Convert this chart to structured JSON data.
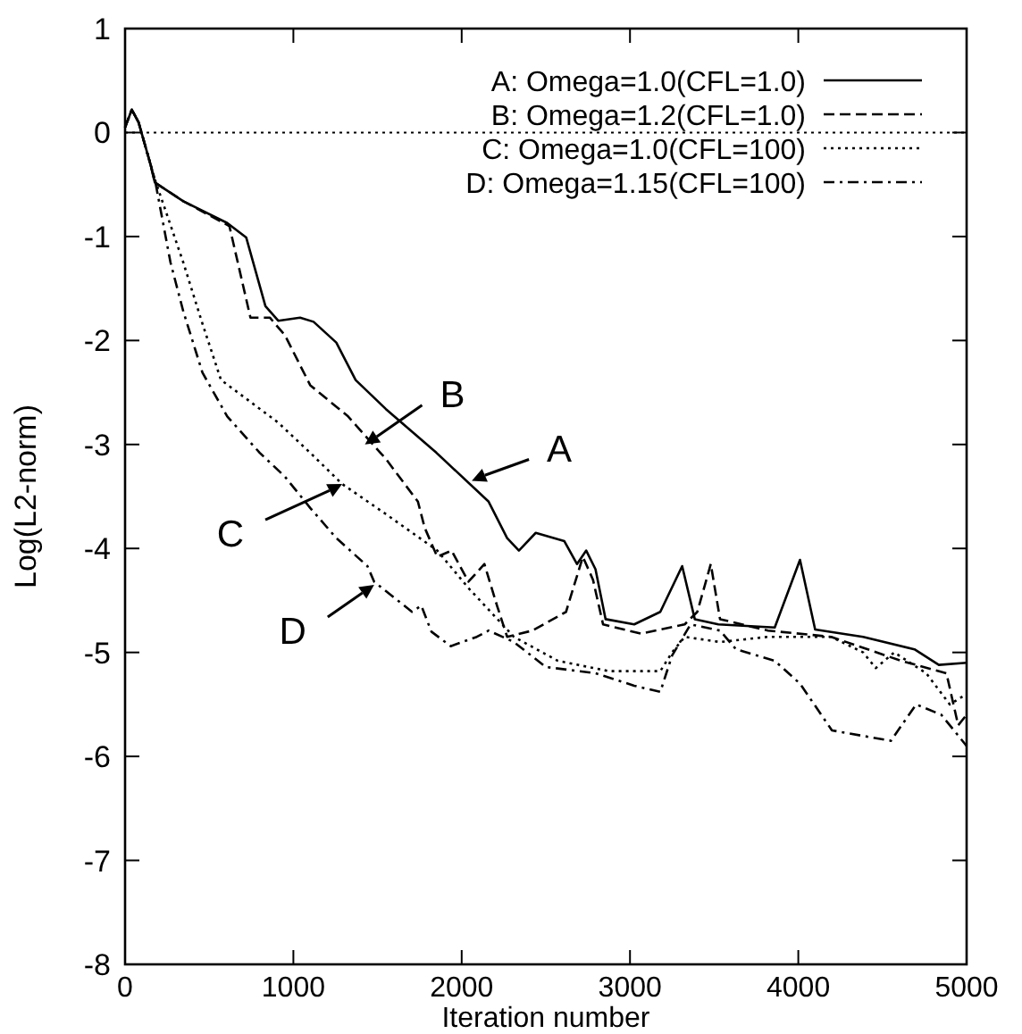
{
  "chart_data": {
    "type": "line",
    "xlabel": "Iteration number",
    "ylabel": "Log(L2-norm)",
    "xlim": [
      0,
      5000
    ],
    "ylim": [
      -8,
      1
    ],
    "xticks": [
      0,
      1000,
      2000,
      3000,
      4000,
      5000
    ],
    "yticks": [
      -8,
      -7,
      -6,
      -5,
      -4,
      -3,
      -2,
      -1,
      0,
      1
    ],
    "grid": false,
    "legend": "top right",
    "marker": "none",
    "ref_lines": [
      {
        "axis": "y",
        "value": 0,
        "line_style": "dotted",
        "color": "#000000"
      }
    ],
    "annotations": [
      {
        "text": "A",
        "x": 2060,
        "y": -3.35
      },
      {
        "text": "B",
        "x": 1425,
        "y": -3.0
      },
      {
        "text": "C",
        "x": 1290,
        "y": -3.38
      },
      {
        "text": "D",
        "x": 1480,
        "y": -4.35
      }
    ],
    "series": [
      {
        "name": "A: Omega=1.0(CFL=1.0)",
        "color": "#000000",
        "line_style": "solid",
        "x": [
          0,
          40,
          80,
          150,
          177,
          346,
          607,
          720,
          834,
          910,
          1040,
          1120,
          1255,
          1370,
          1550,
          1850,
          2160,
          2270,
          2340,
          2440,
          2610,
          2685,
          2740,
          2795,
          2855,
          3025,
          3180,
          3310,
          3385,
          3525,
          3860,
          4010,
          4100,
          4385,
          4690,
          4835,
          5000
        ],
        "values": [
          0.05,
          0.22,
          0.1,
          -0.3,
          -0.48,
          -0.66,
          -0.87,
          -1.01,
          -1.67,
          -1.81,
          -1.78,
          -1.82,
          -2.02,
          -2.38,
          -2.66,
          -3.08,
          -3.55,
          -3.9,
          -4.02,
          -3.85,
          -3.93,
          -4.15,
          -4.02,
          -4.2,
          -4.68,
          -4.73,
          -4.61,
          -4.17,
          -4.68,
          -4.73,
          -4.76,
          -4.11,
          -4.78,
          -4.85,
          -4.97,
          -5.12,
          -5.1
        ]
      },
      {
        "name": "B: Omega=1.2(CFL=1.0)",
        "color": "#000000",
        "line_style": "dashed",
        "x": [
          0,
          40,
          80,
          150,
          177,
          346,
          620,
          745,
          860,
          950,
          1100,
          1325,
          1550,
          1740,
          1780,
          1855,
          1940,
          2040,
          2135,
          2210,
          2270,
          2420,
          2620,
          2720,
          2780,
          2840,
          3065,
          3325,
          3400,
          3480,
          3535,
          3820,
          4195,
          4610,
          4880,
          4950,
          5000
        ],
        "values": [
          0.05,
          0.22,
          0.1,
          -0.3,
          -0.48,
          -0.66,
          -0.9,
          -1.78,
          -1.78,
          -1.95,
          -2.43,
          -2.73,
          -3.14,
          -3.55,
          -3.8,
          -4.08,
          -4.02,
          -4.32,
          -4.15,
          -4.55,
          -4.85,
          -4.79,
          -4.61,
          -4.08,
          -4.3,
          -4.73,
          -4.82,
          -4.73,
          -4.61,
          -4.15,
          -4.68,
          -4.79,
          -4.85,
          -5.08,
          -5.2,
          -5.7,
          -5.6
        ]
      },
      {
        "name": "C: Omega=1.0(CFL=100)",
        "color": "#000000",
        "line_style": "dotted",
        "x": [
          0,
          40,
          80,
          150,
          177,
          346,
          460,
          570,
          720,
          910,
          1100,
          1290,
          1550,
          1855,
          2040,
          2310,
          2570,
          2875,
          3180,
          3250,
          3325,
          3535,
          3820,
          4195,
          4385,
          4460,
          4570,
          4760,
          4900,
          5000
        ],
        "values": [
          0.05,
          0.22,
          0.1,
          -0.3,
          -0.45,
          -1.25,
          -1.84,
          -2.38,
          -2.56,
          -2.79,
          -3.08,
          -3.38,
          -3.67,
          -4.02,
          -4.38,
          -4.85,
          -5.08,
          -5.18,
          -5.18,
          -5.0,
          -4.85,
          -4.9,
          -4.85,
          -4.85,
          -5.0,
          -5.15,
          -5.0,
          -5.2,
          -5.5,
          -5.4
        ]
      },
      {
        "name": "D: Omega=1.15(CFL=100)",
        "color": "#000000",
        "line_style": "dashdot",
        "x": [
          0,
          40,
          80,
          150,
          177,
          270,
          346,
          460,
          607,
          800,
          950,
          1100,
          1255,
          1440,
          1480,
          1705,
          1760,
          1820,
          1935,
          2090,
          2160,
          2310,
          2500,
          2795,
          3025,
          3180,
          3250,
          3360,
          3535,
          3630,
          3860,
          4010,
          4200,
          4550,
          4700,
          4850,
          5000
        ],
        "values": [
          0.05,
          0.22,
          0.1,
          -0.3,
          -0.45,
          -1.25,
          -1.72,
          -2.31,
          -2.73,
          -3.08,
          -3.31,
          -3.61,
          -3.9,
          -4.17,
          -4.32,
          -4.61,
          -4.55,
          -4.8,
          -4.94,
          -4.85,
          -4.79,
          -4.9,
          -5.14,
          -5.2,
          -5.32,
          -5.38,
          -5.03,
          -4.73,
          -4.79,
          -4.97,
          -5.08,
          -5.3,
          -5.75,
          -5.85,
          -5.5,
          -5.6,
          -5.9
        ]
      }
    ]
  }
}
